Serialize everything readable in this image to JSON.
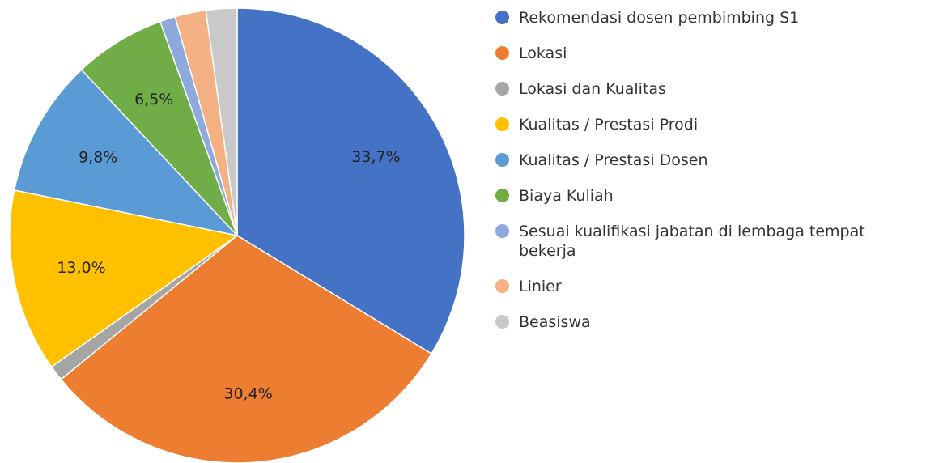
{
  "chart_data": {
    "type": "pie",
    "categories": [
      "Rekomendasi dosen pembimbing S1",
      "Lokasi",
      "Lokasi dan Kualitas",
      "Kualitas / Prestasi Prodi",
      "Kualitas / Prestasi Dosen",
      "Biaya Kuliah",
      "Sesuai kualifikasi jabatan di lembaga tempat bekerja",
      "Linier",
      "Beasiswa"
    ],
    "values": [
      33.7,
      30.4,
      1.1,
      13.0,
      9.8,
      6.5,
      1.1,
      2.2,
      2.2
    ],
    "value_labels": [
      "33,7%",
      "30,4%",
      null,
      "13,0%",
      "9,8%",
      "6,5%",
      null,
      null,
      null
    ],
    "colors": [
      "#4472c4",
      "#ed7d31",
      "#a5a5a5",
      "#ffc000",
      "#5b9bd5",
      "#70ad47",
      "#8ea9db",
      "#f4b183",
      "#c9c9c9"
    ],
    "legend": "right"
  }
}
